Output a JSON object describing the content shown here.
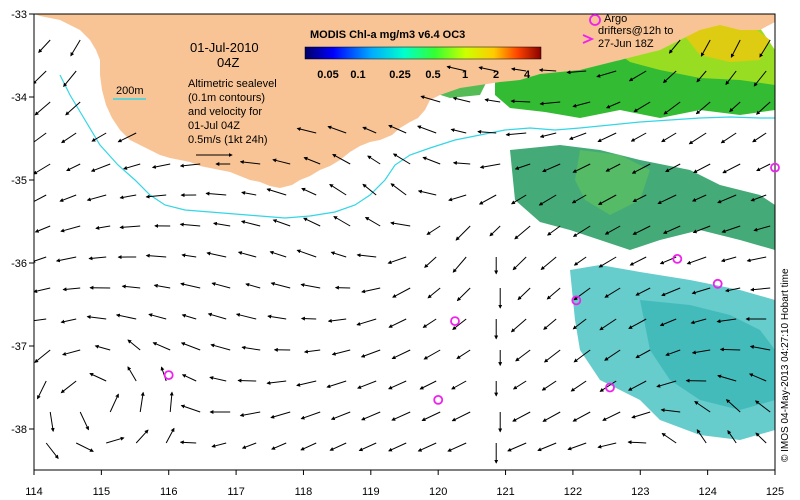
{
  "map": {
    "date": "01-Jul-2010",
    "time": "04Z",
    "legend_200m": "200m",
    "altimetric_lines": [
      "Altimetric sealevel",
      "(0.1m contours)",
      "and velocity for",
      "01-Jul 04Z",
      "0.5m/s (1kt 24h)"
    ],
    "colorbar": {
      "title": "MODIS Chl-a mg/m3 v6.4 OC3",
      "labels": [
        "0.05",
        "0.1",
        "0.25",
        "0.5",
        "1",
        "2",
        "4"
      ]
    },
    "argo_lines": [
      "Argo",
      "drifters@12h to",
      "27-Jun 18Z"
    ],
    "credit": "© IMOS 04-May-2013 04:27:10 Hobart time",
    "x_ticks": [
      "114",
      "115",
      "116",
      "117",
      "118",
      "119",
      "120",
      "121",
      "122",
      "123",
      "124",
      "125"
    ],
    "y_ticks": [
      "-33",
      "-34",
      "-35",
      "-36",
      "-37",
      "-38"
    ],
    "colors": {
      "land": "#f9c495",
      "contour_200m": "#33d6e6",
      "argo": "#ee22ee",
      "arrow": "#000000"
    },
    "argo_floats": [
      {
        "lon": 116.0,
        "lat": -37.35
      },
      {
        "lon": 120.25,
        "lat": -36.7
      },
      {
        "lon": 120.0,
        "lat": -37.65
      },
      {
        "lon": 122.05,
        "lat": -36.45
      },
      {
        "lon": 122.55,
        "lat": -37.5
      },
      {
        "lon": 123.55,
        "lat": -35.95
      },
      {
        "lon": 124.15,
        "lat": -36.25
      },
      {
        "lon": 125.0,
        "lat": -34.85
      }
    ]
  }
}
